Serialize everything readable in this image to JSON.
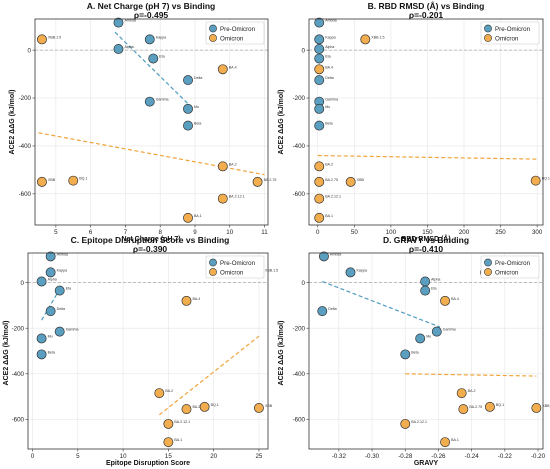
{
  "colors": {
    "pre": "#5a9ec0",
    "omi": "#f2ad4e",
    "pre_line": "#4f9bbf",
    "omi_line": "#f0a43a",
    "zero": "#aaaaaa",
    "grid": "#e6e6e6"
  },
  "legend": [
    "Pre-Omicron",
    "Omicron"
  ],
  "chart_data": [
    {
      "type": "scatter",
      "title": "A. Net Charge (pH 7) vs Binding",
      "subtitle": "ρ=-0.495",
      "xlabel": "Net Charge (pH 7)",
      "ylabel": "ACE2 ΔΔG (kJ/mol)",
      "xlim": [
        4.4,
        11.1
      ],
      "ylim": [
        -730,
        130
      ],
      "xticks": [
        5,
        6,
        7,
        8,
        9,
        10,
        11
      ],
      "yticks": [
        -600,
        -400,
        -200,
        0
      ],
      "grid": true,
      "legend_position": "top-right",
      "series": [
        {
          "name": "Pre-Omicron",
          "role": "pre",
          "points": [
            {
              "x": 6.8,
              "y": 115,
              "label": "Ambda"
            },
            {
              "x": 7.7,
              "y": 45,
              "label": "Kappa"
            },
            {
              "x": 6.8,
              "y": 5,
              "label": "Alpha"
            },
            {
              "x": 7.8,
              "y": -35,
              "label": "Eta"
            },
            {
              "x": 8.8,
              "y": -125,
              "label": "Delta"
            },
            {
              "x": 7.7,
              "y": -215,
              "label": "Gamma"
            },
            {
              "x": 8.8,
              "y": -245,
              "label": "Mu"
            },
            {
              "x": 8.8,
              "y": -315,
              "label": "Beta"
            }
          ],
          "trend": [
            [
              6.7,
              75
            ],
            [
              8.95,
              -245
            ]
          ]
        },
        {
          "name": "Omicron",
          "role": "omi",
          "points": [
            {
              "x": 4.6,
              "y": 45,
              "label": "XBB.1.5"
            },
            {
              "x": 9.8,
              "y": -80,
              "label": "BA.4"
            },
            {
              "x": 9.8,
              "y": -485,
              "label": "BA.2"
            },
            {
              "x": 4.6,
              "y": -550,
              "label": "XBB"
            },
            {
              "x": 5.5,
              "y": -545,
              "label": "BQ.1"
            },
            {
              "x": 10.8,
              "y": -550,
              "label": "BA.2.75"
            },
            {
              "x": 9.8,
              "y": -620,
              "label": "BA.2.12.1"
            },
            {
              "x": 8.8,
              "y": -700,
              "label": "BA.1"
            }
          ],
          "trend": [
            [
              4.5,
              -345
            ],
            [
              11.0,
              -520
            ]
          ]
        }
      ]
    },
    {
      "type": "scatter",
      "title": "B. RBD RMSD (Å) vs Binding",
      "subtitle": "ρ=-0.201",
      "xlabel": "RBD RMSD (Å)",
      "ylabel": "ACE2 ΔΔG (kJ/mol)",
      "xlim": [
        -12,
        308
      ],
      "ylim": [
        -730,
        130
      ],
      "xticks": [
        0,
        50,
        100,
        150,
        200,
        250,
        300
      ],
      "yticks": [
        -600,
        -400,
        -200,
        0
      ],
      "grid": true,
      "legend_position": "top-right",
      "series": [
        {
          "name": "Pre-Omicron",
          "role": "pre",
          "points": [
            {
              "x": 2,
              "y": 115,
              "label": "Ambda"
            },
            {
              "x": 2,
              "y": 45,
              "label": "Kappa"
            },
            {
              "x": 2,
              "y": 5,
              "label": "Alpha"
            },
            {
              "x": 2,
              "y": -35,
              "label": "Eta"
            },
            {
              "x": 2,
              "y": -125,
              "label": "Delta"
            },
            {
              "x": 2,
              "y": -215,
              "label": "Gamma"
            },
            {
              "x": 2,
              "y": -245,
              "label": "Mu"
            },
            {
              "x": 2,
              "y": -315,
              "label": "Beta"
            }
          ],
          "trend": null
        },
        {
          "name": "Omicron",
          "role": "omi",
          "points": [
            {
              "x": 65,
              "y": 45,
              "label": "XBB.1.5"
            },
            {
              "x": 2,
              "y": -80,
              "label": "BA.4"
            },
            {
              "x": 2,
              "y": -485,
              "label": "BA.2"
            },
            {
              "x": 2,
              "y": -550,
              "label": "BA.2.75"
            },
            {
              "x": 45,
              "y": -550,
              "label": "XBB"
            },
            {
              "x": 298,
              "y": -545,
              "label": "BQ.1"
            },
            {
              "x": 2,
              "y": -620,
              "label": "BA.2.12.1"
            },
            {
              "x": 2,
              "y": -700,
              "label": "BA.1"
            }
          ],
          "trend": [
            [
              0,
              -440
            ],
            [
              300,
              -455
            ]
          ]
        }
      ]
    },
    {
      "type": "scatter",
      "title": "C. Epitope Disruption Score vs Binding",
      "subtitle": "ρ=-0.390",
      "xlabel": "Epitope Disruption Score",
      "ylabel": "ACE2 ΔΔG (kJ/mol)",
      "xlim": [
        -0.5,
        26
      ],
      "ylim": [
        -730,
        130
      ],
      "xticks": [
        0,
        5,
        10,
        15,
        20,
        25
      ],
      "yticks": [
        -600,
        -400,
        -200,
        0
      ],
      "grid": true,
      "legend_position": "top-right",
      "series": [
        {
          "name": "Pre-Omicron",
          "role": "pre",
          "points": [
            {
              "x": 2,
              "y": 115,
              "label": "Ambda"
            },
            {
              "x": 2,
              "y": 45,
              "label": "Kappa"
            },
            {
              "x": 1,
              "y": 5,
              "label": "Alpha"
            },
            {
              "x": 3,
              "y": -35,
              "label": "Eta"
            },
            {
              "x": 2,
              "y": -125,
              "label": "Delta"
            },
            {
              "x": 3,
              "y": -215,
              "label": "Gamma"
            },
            {
              "x": 1,
              "y": -245,
              "label": "Mu"
            },
            {
              "x": 1,
              "y": -315,
              "label": "Beta"
            }
          ],
          "trend": [
            [
              1.0,
              -165
            ],
            [
              3.2,
              -15
            ]
          ]
        },
        {
          "name": "Omicron",
          "role": "omi",
          "points": [
            {
              "x": 25,
              "y": 45,
              "label": "XBB.1.5"
            },
            {
              "x": 17,
              "y": -80,
              "label": "BA.4"
            },
            {
              "x": 14,
              "y": -485,
              "label": "BA.2"
            },
            {
              "x": 17,
              "y": -555,
              "label": "BA.2.75"
            },
            {
              "x": 19,
              "y": -545,
              "label": "BQ.1"
            },
            {
              "x": 25,
              "y": -550,
              "label": "XBB"
            },
            {
              "x": 15,
              "y": -620,
              "label": "BA.2.12.1"
            },
            {
              "x": 15,
              "y": -700,
              "label": "BA.1"
            }
          ],
          "trend": [
            [
              14.0,
              -580
            ],
            [
              25.0,
              -235
            ]
          ]
        }
      ]
    },
    {
      "type": "scatter",
      "title": "D. GRAVY vs Binding",
      "subtitle": "ρ=-0.410",
      "xlabel": "GRAVY",
      "ylabel": "ACE2 ΔΔG (kJ/mol)",
      "xlim": [
        -0.338,
        -0.197
      ],
      "ylim": [
        -730,
        130
      ],
      "xticks": [
        -0.32,
        -0.3,
        -0.28,
        -0.26,
        -0.24,
        -0.22,
        -0.2
      ],
      "yticks": [
        -600,
        -400,
        -200,
        0
      ],
      "grid": true,
      "legend_position": "top-right",
      "series": [
        {
          "name": "Pre-Omicron",
          "role": "pre",
          "points": [
            {
              "x": -0.329,
              "y": 115,
              "label": "Ambda"
            },
            {
              "x": -0.313,
              "y": 45,
              "label": "Kappa"
            },
            {
              "x": -0.268,
              "y": 5,
              "label": "Alpha"
            },
            {
              "x": -0.268,
              "y": -35,
              "label": "Eta"
            },
            {
              "x": -0.33,
              "y": -125,
              "label": "Delta"
            },
            {
              "x": -0.261,
              "y": -215,
              "label": "Gamma"
            },
            {
              "x": -0.271,
              "y": -245,
              "label": "Mu"
            },
            {
              "x": -0.28,
              "y": -315,
              "label": "Beta"
            }
          ],
          "trend": [
            [
              -0.33,
              5
            ],
            [
              -0.259,
              -195
            ]
          ]
        },
        {
          "name": "Omicron",
          "role": "omi",
          "points": [
            {
              "x": -0.232,
              "y": 45,
              "label": "XBB.1.5"
            },
            {
              "x": -0.256,
              "y": -80,
              "label": "BA.4"
            },
            {
              "x": -0.246,
              "y": -485,
              "label": "BA.2"
            },
            {
              "x": -0.229,
              "y": -545,
              "label": "BQ.1"
            },
            {
              "x": -0.245,
              "y": -555,
              "label": "BA.2.75"
            },
            {
              "x": -0.201,
              "y": -550,
              "label": "XBB"
            },
            {
              "x": -0.28,
              "y": -620,
              "label": "BA.2.12.1"
            },
            {
              "x": -0.256,
              "y": -700,
              "label": "BA.1"
            }
          ],
          "trend": [
            [
              -0.28,
              -400
            ],
            [
              -0.201,
              -410
            ]
          ]
        }
      ]
    }
  ]
}
